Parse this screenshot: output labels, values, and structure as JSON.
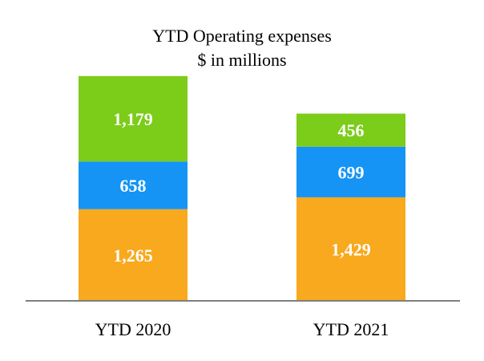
{
  "chart_data": {
    "type": "bar",
    "stacked": true,
    "title": "YTD Operating expenses",
    "subtitle": "$ in millions",
    "categories": [
      "YTD 2020",
      "YTD 2021"
    ],
    "series": [
      {
        "name": "bottom",
        "color": "#F8A91E",
        "values": [
          1265,
          1429
        ],
        "labels": [
          "1,265",
          "1,429"
        ]
      },
      {
        "name": "middle",
        "color": "#1594F5",
        "values": [
          658,
          699
        ],
        "labels": [
          "658",
          "699"
        ]
      },
      {
        "name": "top",
        "color": "#7CCC1A",
        "values": [
          1179,
          456
        ],
        "labels": [
          "1,179",
          "456"
        ]
      }
    ],
    "ylim": [
      0,
      3100
    ],
    "grid": false,
    "legend": "none",
    "axis_color": "#7F7F7F"
  }
}
